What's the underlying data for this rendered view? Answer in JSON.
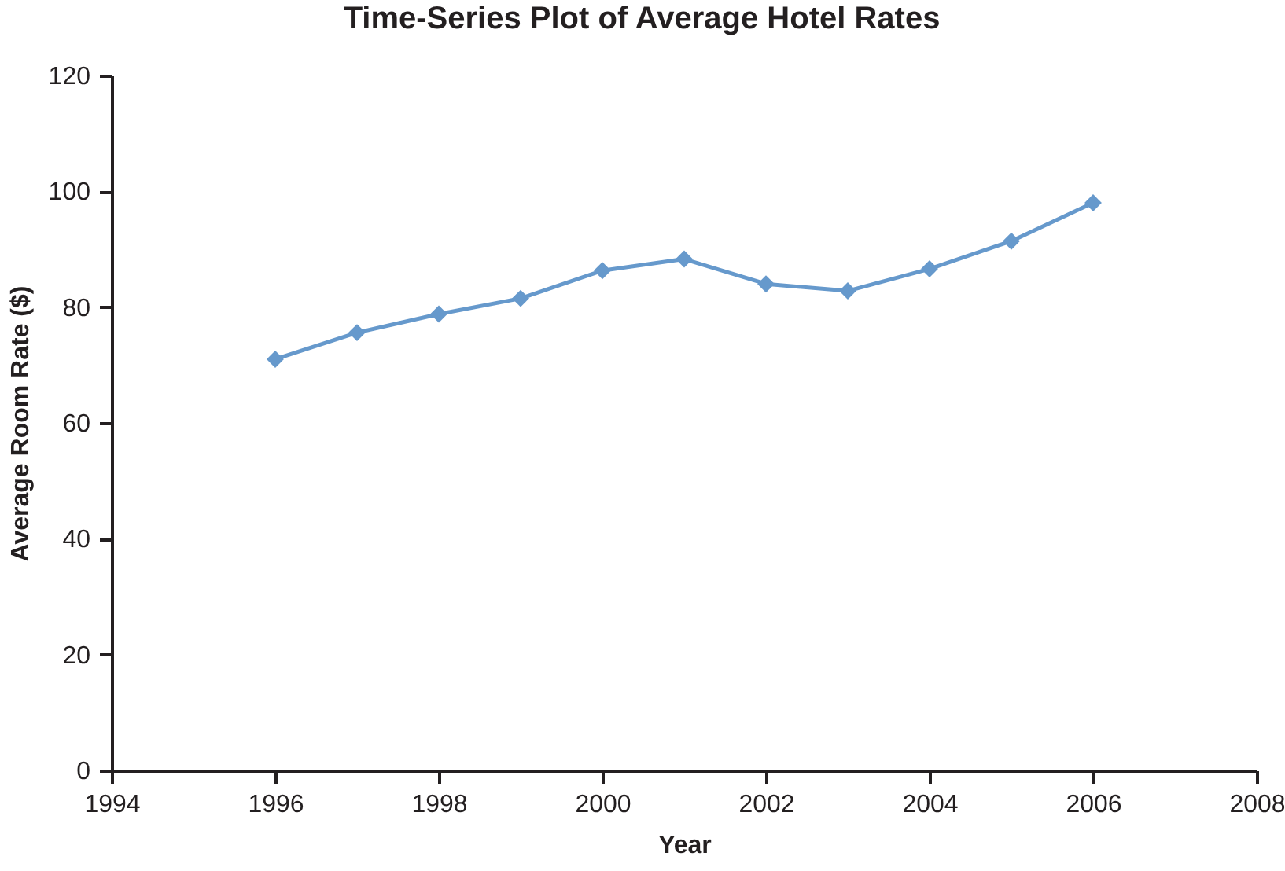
{
  "chart_data": {
    "type": "line",
    "title": "Time-Series Plot of Average Hotel Rates",
    "xlabel": "Year",
    "ylabel": "Average Room Rate ($)",
    "x": [
      1996,
      1997,
      1998,
      1999,
      2000,
      2001,
      2002,
      2003,
      2004,
      2005,
      2006
    ],
    "series": [
      {
        "color": "#6699cc",
        "values": [
          71,
          75.6,
          78.8,
          81.5,
          86.3,
          88.3,
          84,
          82.8,
          86.6,
          91.4,
          98
        ]
      }
    ],
    "xlim": [
      1994,
      2008
    ],
    "xticks": [
      1994,
      1996,
      1998,
      2000,
      2002,
      2004,
      2006,
      2008
    ],
    "ylim": [
      0,
      120
    ],
    "yticks": [
      0,
      20,
      40,
      60,
      80,
      100,
      120
    ],
    "grid": false,
    "legend": false,
    "marker": "diamond",
    "line_style": "solid"
  }
}
